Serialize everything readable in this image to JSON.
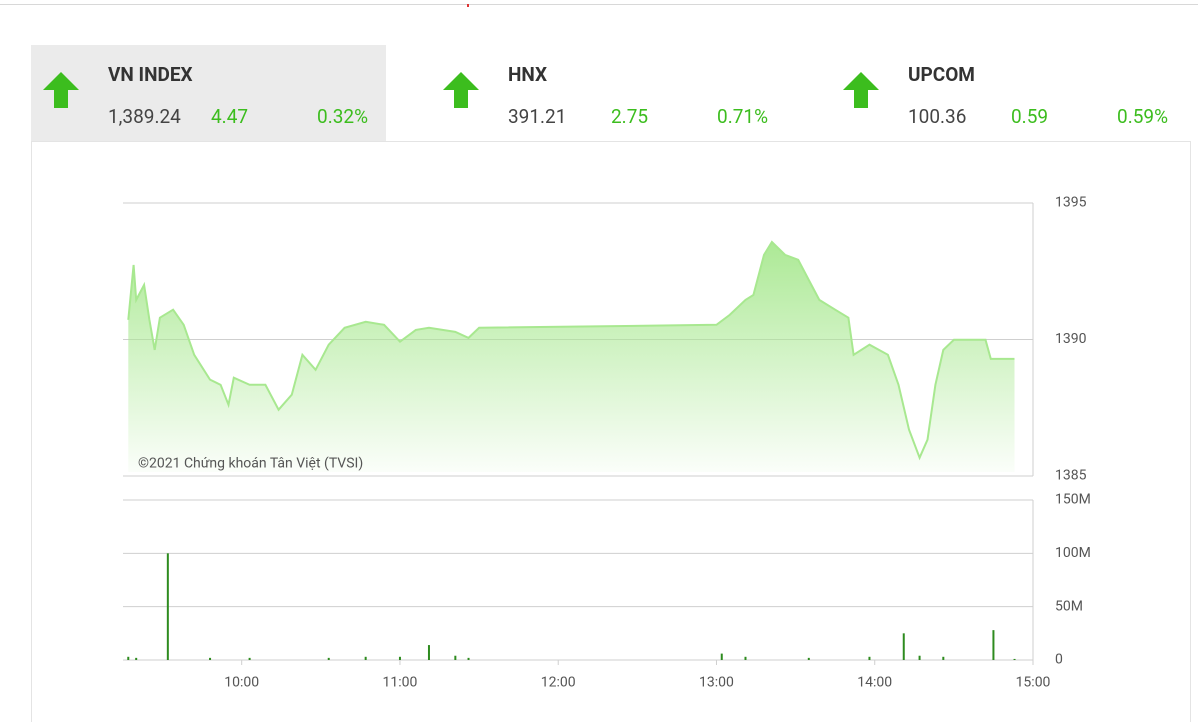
{
  "indices": [
    {
      "name": "VN INDEX",
      "value": "1,389.24",
      "change": "4.47",
      "percent": "0.32%"
    },
    {
      "name": "HNX",
      "value": "391.21",
      "change": "2.75",
      "percent": "0.71%"
    },
    {
      "name": "UPCOM",
      "value": "100.36",
      "change": "0.59",
      "percent": "0.59%"
    }
  ],
  "chart_data": [
    {
      "type": "area",
      "annotation": "©2021 Chứng khoán Tân Việt (TVSI)",
      "color": "#a8e890",
      "x": [
        "09:17",
        "09:19",
        "09:20",
        "09:23",
        "09:25",
        "09:27",
        "09:29",
        "09:34",
        "09:38",
        "09:42",
        "09:48",
        "09:52",
        "09:55",
        "09:57",
        "10:03",
        "10:09",
        "10:14",
        "10:19",
        "10:23",
        "10:28",
        "10:33",
        "10:39",
        "10:47",
        "10:54",
        "11:00",
        "11:06",
        "11:11",
        "11:21",
        "11:26",
        "11:30",
        "13:00",
        "13:05",
        "13:11",
        "13:14",
        "13:18",
        "13:21",
        "13:26",
        "13:31",
        "13:35",
        "13:39",
        "13:45",
        "13:50",
        "13:52",
        "13:58",
        "14:05",
        "14:09",
        "14:13",
        "14:17",
        "14:20",
        "14:23",
        "14:26",
        "14:30",
        "14:42",
        "14:44",
        "14:53"
      ],
      "values": [
        1390.72,
        1392.73,
        1391.45,
        1392.0,
        1390.72,
        1389.62,
        1390.8,
        1391.09,
        1390.54,
        1389.44,
        1388.53,
        1388.34,
        1387.61,
        1388.6,
        1388.34,
        1388.34,
        1387.43,
        1387.98,
        1389.44,
        1388.89,
        1389.81,
        1390.43,
        1390.65,
        1390.54,
        1389.92,
        1390.35,
        1390.43,
        1390.28,
        1390.06,
        1390.43,
        1390.54,
        1390.9,
        1391.45,
        1391.63,
        1393.1,
        1393.57,
        1393.1,
        1392.92,
        1392.18,
        1391.45,
        1391.09,
        1390.8,
        1389.44,
        1389.81,
        1389.44,
        1388.34,
        1386.7,
        1385.67,
        1386.33,
        1388.34,
        1389.62,
        1389.99,
        1389.99,
        1389.29,
        1389.29
      ],
      "xlim": [
        "09:15",
        "15:00"
      ],
      "ylim": [
        1385,
        1395
      ],
      "yticks": [
        1385,
        1390,
        1395
      ],
      "grid": true
    },
    {
      "type": "bar",
      "color": "#2e8b1f",
      "x": [
        "09:17",
        "09:20",
        "09:32",
        "09:48",
        "10:03",
        "10:33",
        "10:47",
        "11:00",
        "11:11",
        "11:21",
        "11:26",
        "13:02",
        "13:11",
        "13:35",
        "13:58",
        "14:11",
        "14:17",
        "14:26",
        "14:45",
        "14:53"
      ],
      "values": [
        3000000,
        2000000,
        100000000,
        2000000,
        2000000,
        2000000,
        3000000,
        3000000,
        14000000,
        4000000,
        2000000,
        6000000,
        3000000,
        2000000,
        3000000,
        25000000,
        4000000,
        3000000,
        28000000,
        1000000
      ],
      "xlim": [
        "09:15",
        "15:00"
      ],
      "xticks": [
        "10:00",
        "11:00",
        "12:00",
        "13:00",
        "14:00",
        "15:00"
      ],
      "ylim": [
        0,
        150000000
      ],
      "yticks": [
        0,
        {
          "value": 50000000,
          "label": "50M"
        },
        {
          "value": 100000000,
          "label": "100M"
        },
        {
          "value": 150000000,
          "label": "150M"
        }
      ],
      "grid": true
    }
  ]
}
